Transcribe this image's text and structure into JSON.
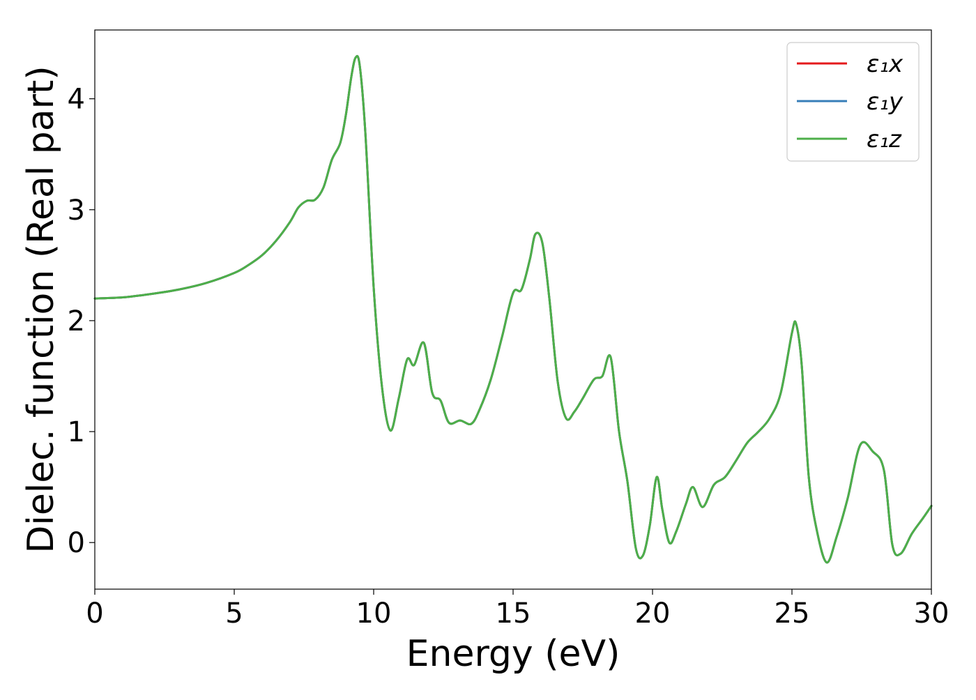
{
  "chart_data": {
    "type": "line",
    "title": "",
    "xlabel": "Energy (eV)",
    "ylabel": "Dielec. function (Real part)",
    "xlim": [
      0,
      30
    ],
    "ylim": [
      -0.42,
      4.62
    ],
    "xticks": [
      0,
      5,
      10,
      15,
      20,
      25,
      30
    ],
    "yticks": [
      0,
      1,
      2,
      3,
      4
    ],
    "grid": false,
    "legend_position": "top-right",
    "series": [
      {
        "name": "ε₁x",
        "color": "#e41a1c",
        "x": [
          0,
          1,
          2,
          3,
          4,
          5,
          5.5,
          6,
          6.5,
          7,
          7.3,
          7.6,
          7.9,
          8.2,
          8.5,
          8.8,
          9.0,
          9.2,
          9.35,
          9.5,
          9.7,
          10.0,
          10.3,
          10.6,
          10.9,
          11.2,
          11.45,
          11.8,
          12.1,
          12.4,
          12.7,
          13.1,
          13.5,
          13.8,
          14.2,
          14.6,
          15.0,
          15.3,
          15.6,
          15.8,
          16.05,
          16.3,
          16.6,
          16.9,
          17.2,
          17.5,
          17.9,
          18.2,
          18.5,
          18.8,
          19.1,
          19.4,
          19.65,
          19.9,
          20.15,
          20.35,
          20.6,
          20.85,
          21.2,
          21.45,
          21.8,
          22.2,
          22.6,
          23.0,
          23.4,
          23.8,
          24.2,
          24.6,
          25.0,
          25.15,
          25.35,
          25.6,
          25.9,
          26.25,
          26.6,
          27.0,
          27.45,
          27.9,
          28.3,
          28.6,
          28.9,
          29.3,
          29.7,
          30.0
        ],
        "values": [
          2.2,
          2.21,
          2.24,
          2.28,
          2.34,
          2.43,
          2.5,
          2.59,
          2.72,
          2.89,
          3.02,
          3.08,
          3.09,
          3.2,
          3.45,
          3.6,
          3.85,
          4.2,
          4.37,
          4.3,
          3.7,
          2.3,
          1.4,
          1.01,
          1.3,
          1.65,
          1.6,
          1.8,
          1.35,
          1.28,
          1.08,
          1.1,
          1.07,
          1.2,
          1.47,
          1.85,
          2.25,
          2.28,
          2.55,
          2.78,
          2.7,
          2.2,
          1.45,
          1.12,
          1.18,
          1.3,
          1.47,
          1.5,
          1.67,
          1.0,
          0.55,
          -0.05,
          -0.12,
          0.15,
          0.59,
          0.3,
          0.0,
          0.1,
          0.35,
          0.5,
          0.32,
          0.52,
          0.59,
          0.74,
          0.9,
          1.0,
          1.12,
          1.35,
          1.89,
          1.97,
          1.6,
          0.6,
          0.1,
          -0.18,
          0.05,
          0.4,
          0.88,
          0.82,
          0.65,
          -0.02,
          -0.1,
          0.08,
          0.22,
          0.33
        ]
      },
      {
        "name": "ε₁y",
        "color": "#377eb8",
        "x": [
          0,
          1,
          2,
          3,
          4,
          5,
          5.5,
          6,
          6.5,
          7,
          7.3,
          7.6,
          7.9,
          8.2,
          8.5,
          8.8,
          9.0,
          9.2,
          9.35,
          9.5,
          9.7,
          10.0,
          10.3,
          10.6,
          10.9,
          11.2,
          11.45,
          11.8,
          12.1,
          12.4,
          12.7,
          13.1,
          13.5,
          13.8,
          14.2,
          14.6,
          15.0,
          15.3,
          15.6,
          15.8,
          16.05,
          16.3,
          16.6,
          16.9,
          17.2,
          17.5,
          17.9,
          18.2,
          18.5,
          18.8,
          19.1,
          19.4,
          19.65,
          19.9,
          20.15,
          20.35,
          20.6,
          20.85,
          21.2,
          21.45,
          21.8,
          22.2,
          22.6,
          23.0,
          23.4,
          23.8,
          24.2,
          24.6,
          25.0,
          25.15,
          25.35,
          25.6,
          25.9,
          26.25,
          26.6,
          27.0,
          27.45,
          27.9,
          28.3,
          28.6,
          28.9,
          29.3,
          29.7,
          30.0
        ],
        "values": [
          2.2,
          2.21,
          2.24,
          2.28,
          2.34,
          2.43,
          2.5,
          2.59,
          2.72,
          2.89,
          3.02,
          3.08,
          3.09,
          3.2,
          3.45,
          3.6,
          3.85,
          4.2,
          4.37,
          4.3,
          3.7,
          2.3,
          1.4,
          1.01,
          1.3,
          1.65,
          1.6,
          1.8,
          1.35,
          1.28,
          1.08,
          1.1,
          1.07,
          1.2,
          1.47,
          1.85,
          2.25,
          2.28,
          2.55,
          2.78,
          2.7,
          2.2,
          1.45,
          1.12,
          1.18,
          1.3,
          1.47,
          1.5,
          1.67,
          1.0,
          0.55,
          -0.05,
          -0.12,
          0.15,
          0.59,
          0.3,
          0.0,
          0.1,
          0.35,
          0.5,
          0.32,
          0.52,
          0.59,
          0.74,
          0.9,
          1.0,
          1.12,
          1.35,
          1.89,
          1.97,
          1.6,
          0.6,
          0.1,
          -0.18,
          0.05,
          0.4,
          0.88,
          0.82,
          0.65,
          -0.02,
          -0.1,
          0.08,
          0.22,
          0.33
        ]
      },
      {
        "name": "ε₁z",
        "color": "#4daf4a",
        "x": [
          0,
          1,
          2,
          3,
          4,
          5,
          5.5,
          6,
          6.5,
          7,
          7.3,
          7.6,
          7.9,
          8.2,
          8.5,
          8.8,
          9.0,
          9.2,
          9.35,
          9.5,
          9.7,
          10.0,
          10.3,
          10.6,
          10.9,
          11.2,
          11.45,
          11.8,
          12.1,
          12.4,
          12.7,
          13.1,
          13.5,
          13.8,
          14.2,
          14.6,
          15.0,
          15.3,
          15.6,
          15.8,
          16.05,
          16.3,
          16.6,
          16.9,
          17.2,
          17.5,
          17.9,
          18.2,
          18.5,
          18.8,
          19.1,
          19.4,
          19.65,
          19.9,
          20.15,
          20.35,
          20.6,
          20.85,
          21.2,
          21.45,
          21.8,
          22.2,
          22.6,
          23.0,
          23.4,
          23.8,
          24.2,
          24.6,
          25.0,
          25.15,
          25.35,
          25.6,
          25.9,
          26.25,
          26.6,
          27.0,
          27.45,
          27.9,
          28.3,
          28.6,
          28.9,
          29.3,
          29.7,
          30.0
        ],
        "values": [
          2.2,
          2.21,
          2.24,
          2.28,
          2.34,
          2.43,
          2.5,
          2.59,
          2.72,
          2.89,
          3.02,
          3.08,
          3.09,
          3.2,
          3.45,
          3.6,
          3.85,
          4.2,
          4.37,
          4.3,
          3.7,
          2.3,
          1.4,
          1.01,
          1.3,
          1.65,
          1.6,
          1.8,
          1.35,
          1.28,
          1.08,
          1.1,
          1.07,
          1.2,
          1.47,
          1.85,
          2.25,
          2.28,
          2.55,
          2.78,
          2.7,
          2.2,
          1.45,
          1.12,
          1.18,
          1.3,
          1.47,
          1.5,
          1.67,
          1.0,
          0.55,
          -0.05,
          -0.12,
          0.15,
          0.59,
          0.3,
          0.0,
          0.1,
          0.35,
          0.5,
          0.32,
          0.52,
          0.59,
          0.74,
          0.9,
          1.0,
          1.12,
          1.35,
          1.89,
          1.97,
          1.6,
          0.6,
          0.1,
          -0.18,
          0.05,
          0.4,
          0.88,
          0.82,
          0.65,
          -0.02,
          -0.1,
          0.08,
          0.22,
          0.33
        ]
      }
    ]
  }
}
